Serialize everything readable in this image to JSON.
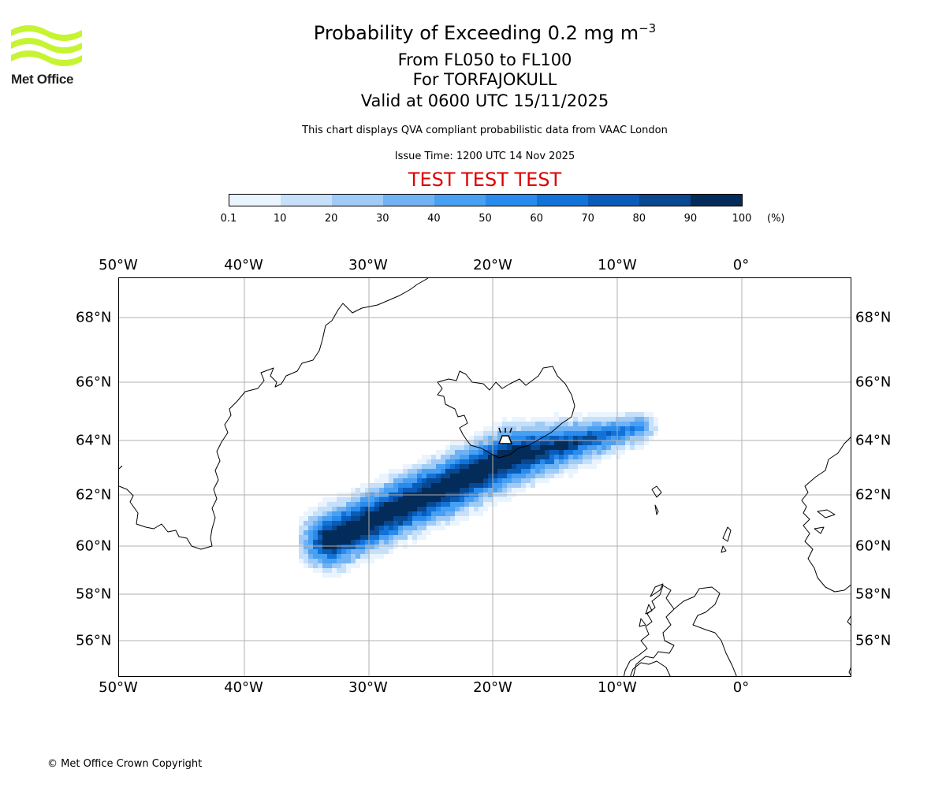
{
  "logo": {
    "text": "Met Office",
    "icon": "met-office-waves-icon",
    "color": "#c6f432"
  },
  "title": {
    "main": "Probability of Exceeding 0.2 mg m",
    "main_sup": "−3",
    "levels": "From FL050 to FL100",
    "volcano": "For TORFAJOKULL",
    "valid": "Valid at 0600 UTC 15/11/2025"
  },
  "subtitle": {
    "source": "This chart displays QVA compliant probabilistic data from VAAC London",
    "issue": "Issue Time: 1200 UTC 14 Nov 2025",
    "test": "TEST TEST TEST"
  },
  "colorbar": {
    "ticks": [
      "0.1",
      "10",
      "20",
      "30",
      "40",
      "50",
      "60",
      "70",
      "80",
      "90",
      "100"
    ],
    "unit": "(%)",
    "colors": [
      "#eaf4fe",
      "#c6e0fa",
      "#a0cbf6",
      "#70b2f4",
      "#48a0f2",
      "#2a8bee",
      "#1272d8",
      "#0a5cba",
      "#074890",
      "#032c5a"
    ]
  },
  "map": {
    "lon_labels": [
      "50°W",
      "40°W",
      "30°W",
      "20°W",
      "10°W",
      "0°"
    ],
    "lat_labels": [
      "68°N",
      "66°N",
      "64°N",
      "62°N",
      "60°N",
      "58°N",
      "56°N"
    ],
    "volcano_icon": "volcano-icon",
    "grid_color": "#b0b0b0"
  },
  "footer": {
    "copyright": "© Met Office Crown Copyright"
  }
}
